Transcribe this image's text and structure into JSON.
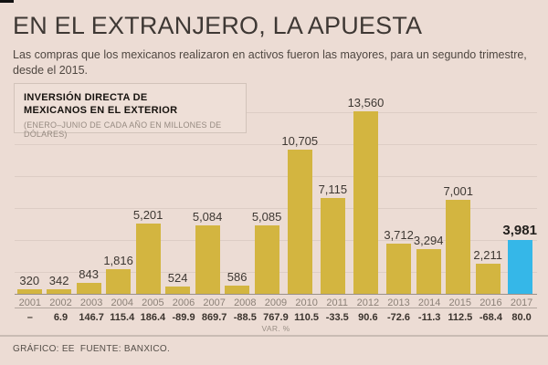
{
  "header": {
    "title": "EN EL EXTRANJERO, LA APUESTA",
    "subtitle": "Las compras que los mexicanos realizaron en activos fueron las mayores, para un segundo trimestre, desde el 2015."
  },
  "legend": {
    "title_line1": "INVERSIÓN DIRECTA DE",
    "title_line2": "MEXICANOS EN EL EXTERIOR",
    "note": "(ENERO–JUNIO DE CADA AÑO EN MILLONES DE DÓLARES)"
  },
  "chart_data": {
    "type": "bar",
    "title": "INVERSIÓN DIRECTA DE MEXICANOS EN EL EXTERIOR",
    "subtitle_note": "(ENERO–JUNIO DE CADA AÑO EN MILLONES DE DÓLARES)",
    "categories": [
      "2001",
      "2002",
      "2003",
      "2004",
      "2005",
      "2006",
      "2007",
      "2008",
      "2009",
      "2010",
      "2011",
      "2012",
      "2013",
      "2014",
      "2015",
      "2016",
      "2017"
    ],
    "values": [
      320,
      342,
      843,
      1816,
      5201,
      524,
      5084,
      586,
      5085,
      10705,
      7115,
      13560,
      3712,
      3294,
      7001,
      2211,
      3981
    ],
    "value_labels": [
      "320",
      "342",
      "843",
      "1,816",
      "5,201",
      "524",
      "5,084",
      "586",
      "5,085",
      "10,705",
      "7,115",
      "13,560",
      "3,712",
      "3,294",
      "7,001",
      "2,211",
      "3,981"
    ],
    "var_pct": [
      "–",
      "6.9",
      "146.7",
      "115.4",
      "186.4",
      "-89.9",
      "869.7",
      "-88.5",
      "767.9",
      "110.5",
      "-33.5",
      "90.6",
      "-72.6",
      "-11.3",
      "112.5",
      "-68.4",
      "80.0"
    ],
    "var_row_label": "VAR. %",
    "xlabel": "",
    "ylabel": "",
    "ylim": [
      0,
      13560
    ],
    "grid": true,
    "legend_position": "top-left",
    "bar_color": "#d3b540",
    "highlight_color": "#35b7e8",
    "highlight_index": 16
  },
  "footer": {
    "credit": "GRÁFICO: EE  FUENTE: BANXICO."
  }
}
